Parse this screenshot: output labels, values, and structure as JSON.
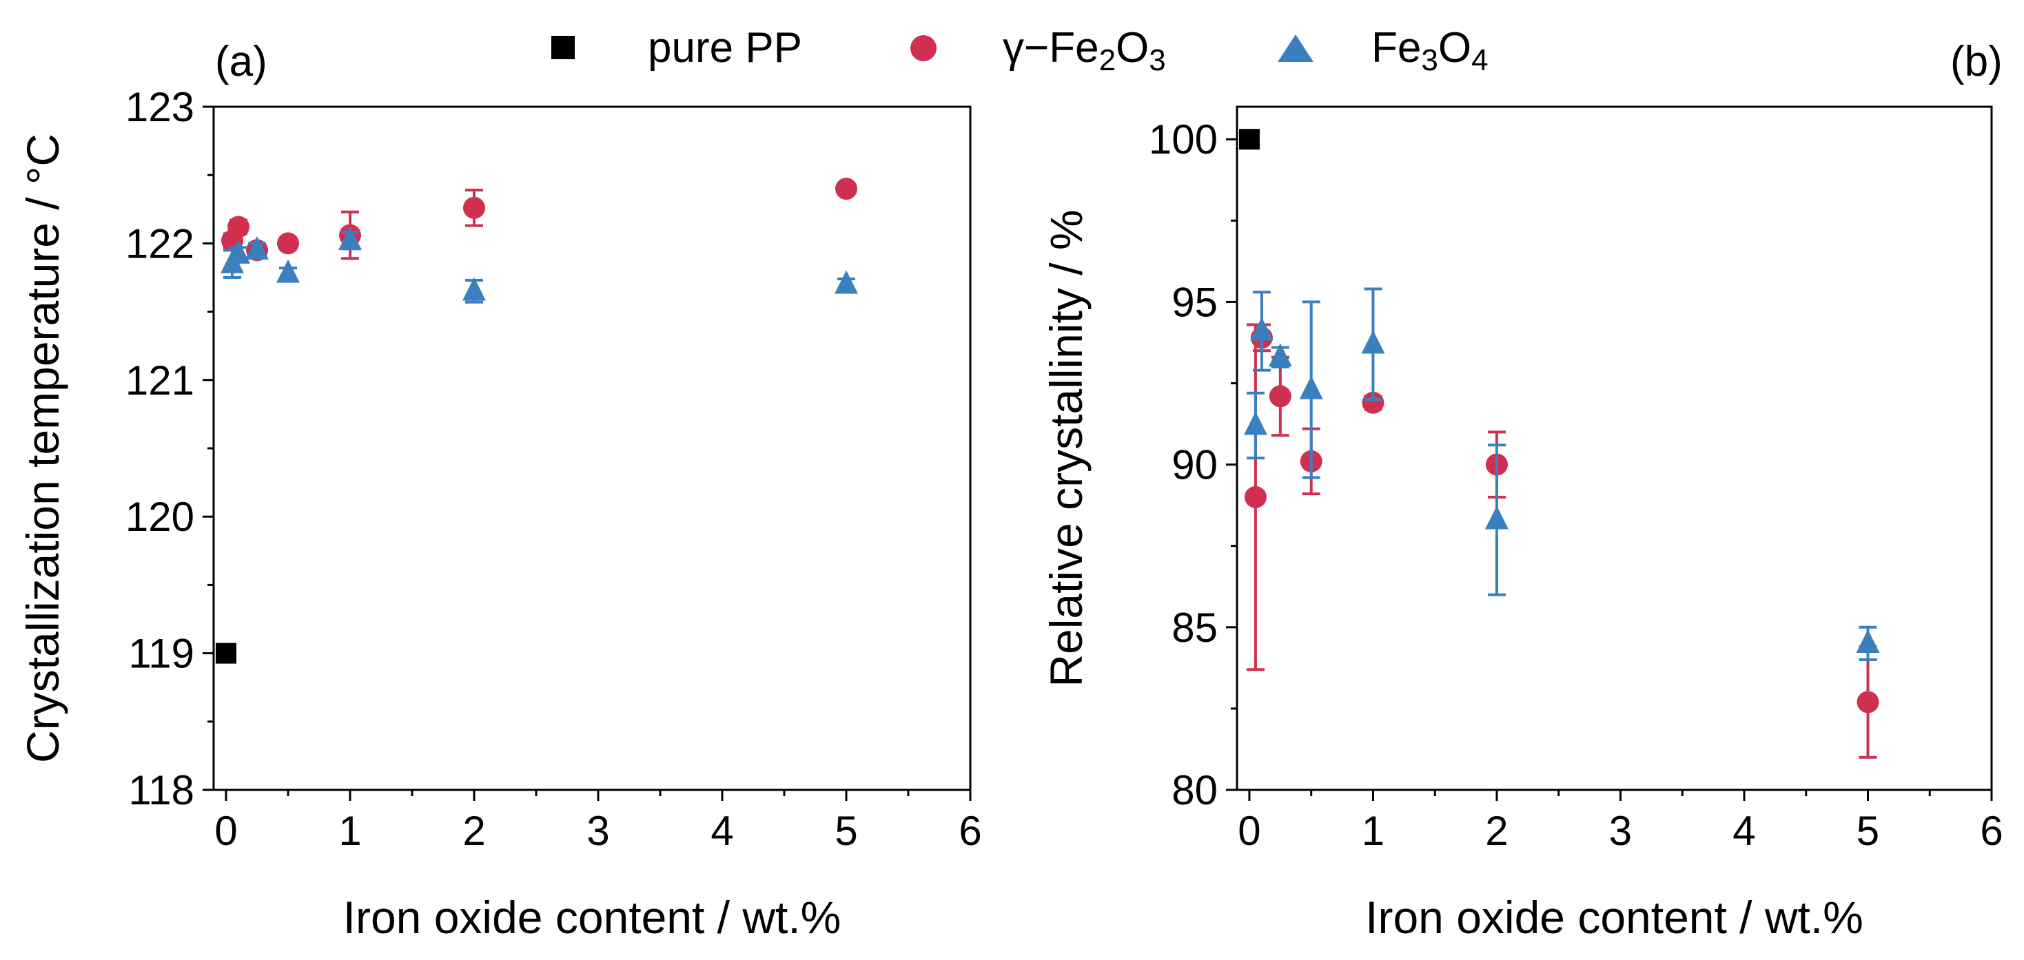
{
  "legend": {
    "placement": "top-center",
    "entries": [
      {
        "label": "pure PP",
        "marker": "square",
        "color": "#000000"
      },
      {
        "label": "γ−Fe",
        "sub1": "2",
        "mid": "O",
        "sub2": "3",
        "marker": "circle",
        "color": "#d03050"
      },
      {
        "label": "Fe",
        "sub1": "3",
        "mid": "O",
        "sub2": "4",
        "marker": "triangle",
        "color": "#3a80bf"
      }
    ]
  },
  "chart_data": [
    {
      "type": "scatter",
      "panel_label": "(a)",
      "xlabel": "Iron oxide content / wt.%",
      "ylabel": "Crystallization temperature / °C",
      "xlim": [
        -0.1,
        6
      ],
      "ylim": [
        118,
        123
      ],
      "xticks": [
        0,
        1,
        2,
        3,
        4,
        5,
        6
      ],
      "yticks": [
        118,
        119,
        120,
        121,
        122,
        123
      ],
      "series": [
        {
          "name": "pure PP",
          "marker": "square",
          "color": "#000000",
          "x": [
            0
          ],
          "y": [
            119.0
          ],
          "err": [
            0
          ]
        },
        {
          "name": "γ-Fe2O3",
          "marker": "circle",
          "color": "#d03050",
          "x": [
            0.05,
            0.1,
            0.25,
            0.5,
            1,
            2,
            5
          ],
          "y": [
            122.02,
            122.12,
            121.95,
            122.0,
            122.06,
            122.26,
            122.4
          ],
          "err": [
            0.05,
            0.05,
            0.05,
            0.04,
            0.17,
            0.13,
            0.04
          ]
        },
        {
          "name": "Fe3O4",
          "marker": "triangle",
          "color": "#3a80bf",
          "x": [
            0.05,
            0.1,
            0.25,
            0.5,
            1,
            2,
            5
          ],
          "y": [
            121.85,
            121.92,
            121.95,
            121.78,
            122.02,
            121.65,
            121.7
          ],
          "err": [
            0.1,
            0.05,
            0.05,
            0.04,
            0.06,
            0.08,
            0.04
          ]
        }
      ]
    },
    {
      "type": "scatter",
      "panel_label": "(b)",
      "xlabel": "Iron oxide content / wt.%",
      "ylabel": "Relative crystallinity / %",
      "xlim": [
        -0.1,
        6
      ],
      "ylim": [
        80,
        101
      ],
      "xticks": [
        0,
        1,
        2,
        3,
        4,
        5,
        6
      ],
      "yticks": [
        80,
        85,
        90,
        95,
        100
      ],
      "series": [
        {
          "name": "pure PP",
          "marker": "square",
          "color": "#000000",
          "x": [
            0
          ],
          "y": [
            100.0
          ],
          "err": [
            0
          ]
        },
        {
          "name": "γ-Fe2O3",
          "marker": "circle",
          "color": "#d03050",
          "x": [
            0.05,
            0.1,
            0.25,
            0.5,
            1,
            2,
            5
          ],
          "y": [
            89.0,
            93.9,
            92.1,
            90.1,
            91.9,
            90.0,
            82.7
          ],
          "err": [
            5.3,
            0.4,
            1.2,
            1.0,
            0.2,
            1.0,
            1.7
          ]
        },
        {
          "name": "Fe3O4",
          "marker": "triangle",
          "color": "#3a80bf",
          "x": [
            0.05,
            0.1,
            0.25,
            0.5,
            1,
            2,
            5
          ],
          "y": [
            91.2,
            94.1,
            93.3,
            92.3,
            93.7,
            88.3,
            84.5
          ],
          "err": [
            1.0,
            1.2,
            0.3,
            2.7,
            1.7,
            2.3,
            0.5
          ]
        }
      ]
    }
  ]
}
